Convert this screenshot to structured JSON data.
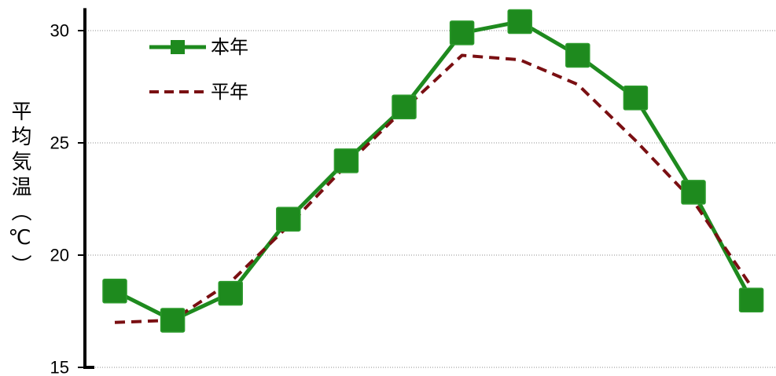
{
  "chart_data": {
    "type": "line",
    "title": "",
    "xlabel": "",
    "ylabel": "平均気温（℃）",
    "yticks": [
      15,
      20,
      25,
      30
    ],
    "ylim": [
      15,
      31
    ],
    "grid": true,
    "legend": "top-left",
    "series": [
      {
        "name": "本年",
        "values": [
          18.4,
          17.1,
          18.3,
          21.6,
          24.2,
          26.6,
          29.9,
          30.4,
          28.9,
          27.0,
          22.8,
          18.0
        ],
        "color": "#1e8a1e",
        "line_style": "solid",
        "marker": "square"
      },
      {
        "name": "平年",
        "values": [
          17.0,
          17.1,
          18.8,
          21.3,
          24.0,
          26.5,
          28.9,
          28.7,
          27.6,
          25.1,
          22.4,
          18.6
        ],
        "color": "#7a0f12",
        "line_style": "dashed",
        "marker": "none"
      }
    ]
  }
}
